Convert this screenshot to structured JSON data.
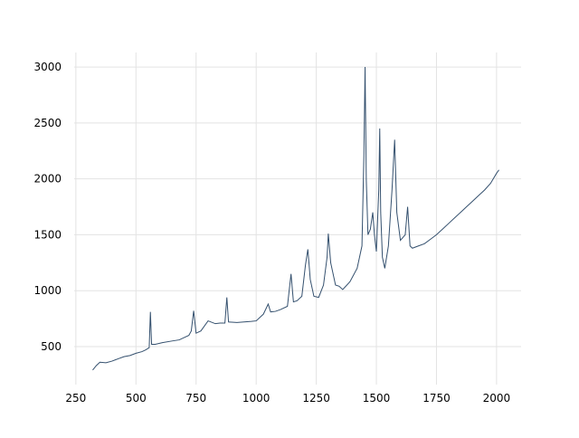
{
  "chart_data": {
    "type": "line",
    "x": [
      320,
      335,
      350,
      375,
      400,
      425,
      450,
      475,
      500,
      525,
      540,
      555,
      560,
      565,
      580,
      610,
      650,
      680,
      700,
      720,
      730,
      740,
      750,
      770,
      800,
      830,
      850,
      870,
      878,
      885,
      920,
      950,
      980,
      1000,
      1030,
      1050,
      1060,
      1080,
      1100,
      1130,
      1145,
      1155,
      1170,
      1190,
      1205,
      1215,
      1225,
      1240,
      1260,
      1280,
      1295,
      1300,
      1310,
      1330,
      1345,
      1360,
      1390,
      1420,
      1440,
      1448,
      1453,
      1458,
      1465,
      1475,
      1485,
      1492,
      1500,
      1510,
      1514,
      1518,
      1525,
      1535,
      1550,
      1565,
      1576,
      1585,
      1600,
      1620,
      1630,
      1640,
      1650,
      1675,
      1700,
      1725,
      1750,
      1775,
      1800,
      1825,
      1850,
      1875,
      1900,
      1925,
      1950,
      1975,
      2000,
      2010
    ],
    "series": [
      {
        "color": "#34506e",
        "values": [
          290,
          330,
          360,
          355,
          370,
          390,
          410,
          420,
          440,
          455,
          470,
          490,
          810,
          520,
          520,
          535,
          550,
          560,
          580,
          600,
          640,
          820,
          620,
          640,
          730,
          705,
          710,
          710,
          940,
          720,
          715,
          720,
          725,
          730,
          790,
          880,
          810,
          815,
          830,
          860,
          1150,
          900,
          910,
          950,
          1230,
          1370,
          1100,
          950,
          940,
          1050,
          1300,
          1510,
          1250,
          1050,
          1040,
          1010,
          1080,
          1200,
          1400,
          2200,
          3000,
          2000,
          1500,
          1550,
          1700,
          1500,
          1350,
          1900,
          2450,
          1700,
          1300,
          1200,
          1400,
          1900,
          2350,
          1700,
          1450,
          1500,
          1750,
          1400,
          1380,
          1400,
          1420,
          1460,
          1500,
          1550,
          1600,
          1650,
          1700,
          1750,
          1800,
          1850,
          1900,
          1960,
          2050,
          2080
        ]
      }
    ],
    "xlim": [
      243,
      2102
    ],
    "ylim": [
      160,
      3130
    ],
    "xticks": [
      250,
      500,
      750,
      1000,
      1250,
      1500,
      1750,
      2000
    ],
    "yticks": [
      500,
      1000,
      1500,
      2000,
      2500,
      3000
    ],
    "grid": true
  }
}
